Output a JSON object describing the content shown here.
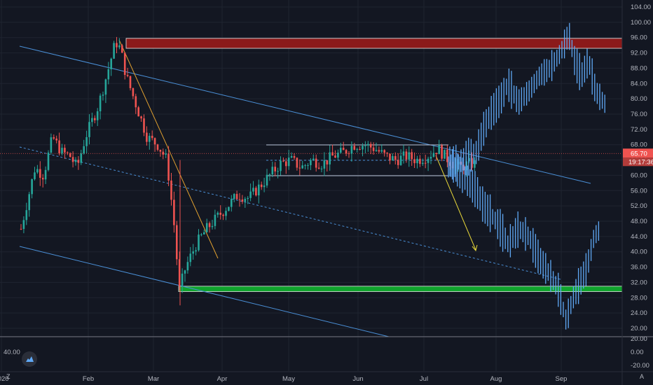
{
  "chart_data": {
    "type": "candlestick",
    "price_axis": {
      "ticks": [
        "104.00",
        "100.00",
        "96.00",
        "92.00",
        "88.00",
        "84.00",
        "80.00",
        "76.00",
        "72.00",
        "68.00",
        "64.00",
        "60.00",
        "56.00",
        "52.00",
        "48.00",
        "44.00",
        "40.00",
        "36.00",
        "32.00",
        "28.00",
        "24.00",
        "20.00"
      ],
      "ylim": [
        18,
        105
      ]
    },
    "time_axis": {
      "labels": [
        "2020",
        "Feb",
        "Mar",
        "Apr",
        "May",
        "Jun",
        "Jul",
        "Aug",
        "Sep"
      ]
    },
    "last_price": {
      "value": "65.70",
      "countdown": "19:17:36",
      "level": 65.7
    },
    "zones": [
      {
        "name": "resistance-zone",
        "low": 93.2,
        "high": 95.8,
        "color": "#8b1a1a"
      },
      {
        "name": "support-zone",
        "low": 29.6,
        "high": 31.0,
        "color": "#0fa32c"
      }
    ],
    "indicator_pane": {
      "ticks": [
        "20.00",
        "0.00",
        "-20.00"
      ],
      "left_value": "40.00"
    },
    "colors": {
      "up": "#26a69a",
      "down": "#ef5350",
      "projection": "#5fa8f5",
      "channel": "#4a8fd6",
      "yellow": "#e6d63a",
      "orange": "#e0a030"
    }
  },
  "controls": {
    "zoom": "Z",
    "auto": "A"
  }
}
